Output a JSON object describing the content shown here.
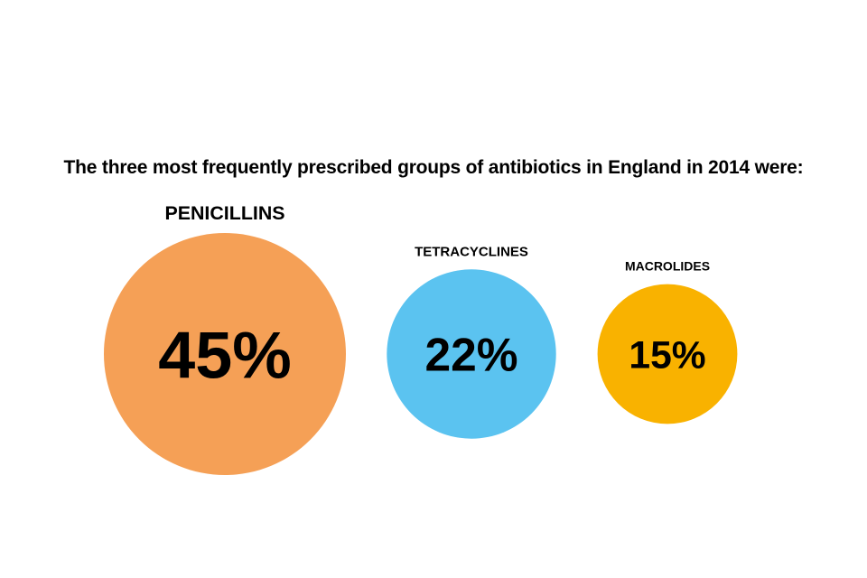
{
  "chart_data": {
    "type": "bubble",
    "title": "The three most frequently prescribed groups of antibiotics in England in 2014 were:",
    "categories": [
      "PENICILLINS",
      "TETRACYCLINES",
      "MACROLIDES"
    ],
    "values": [
      45,
      22,
      15
    ],
    "value_labels": [
      "45%",
      "22%",
      "15%"
    ],
    "unit": "%",
    "colors": [
      "#f5a056",
      "#5bc3f0",
      "#f9b200"
    ],
    "legend": "none",
    "grid": false
  }
}
